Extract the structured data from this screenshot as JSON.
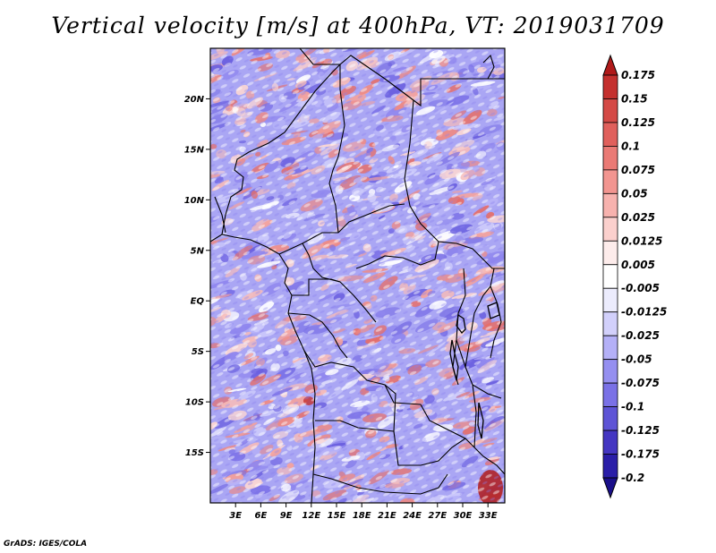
{
  "title": "Vertical velocity [m/s] at 400hPa, VT: 2019031709",
  "footer": "GrADS: IGES/COLA",
  "lat_axis": {
    "labels": [
      "20N",
      "15N",
      "10N",
      "5N",
      "EQ",
      "5S",
      "10S",
      "15S"
    ],
    "values": [
      20,
      15,
      10,
      5,
      0,
      -5,
      -10,
      -15
    ],
    "range": [
      -20,
      25
    ]
  },
  "lon_axis": {
    "labels": [
      "3E",
      "6E",
      "9E",
      "12E",
      "15E",
      "18E",
      "21E",
      "24E",
      "27E",
      "30E",
      "33E"
    ],
    "values": [
      3,
      6,
      9,
      12,
      15,
      18,
      21,
      24,
      27,
      30,
      33
    ],
    "range": [
      0,
      35
    ]
  },
  "colorbar": {
    "labels": [
      "0.175",
      "0.15",
      "0.125",
      "0.1",
      "0.075",
      "0.05",
      "0.025",
      "0.0125",
      "0.005",
      "-0.005",
      "-0.0125",
      "-0.025",
      "-0.05",
      "-0.075",
      "-0.1",
      "-0.125",
      "-0.175",
      "-0.2"
    ],
    "colors": [
      "#b01a1a",
      "#c4302e",
      "#d44a46",
      "#e0605c",
      "#ea7a75",
      "#f29590",
      "#f7b2ae",
      "#fbd0cd",
      "#fdeceb",
      "#ffffff",
      "#ececfd",
      "#d2d0fb",
      "#b4b0f7",
      "#958ff0",
      "#7a71e6",
      "#5e54d6",
      "#4436c2",
      "#2a1ea8",
      "#1a0f8a"
    ]
  }
}
